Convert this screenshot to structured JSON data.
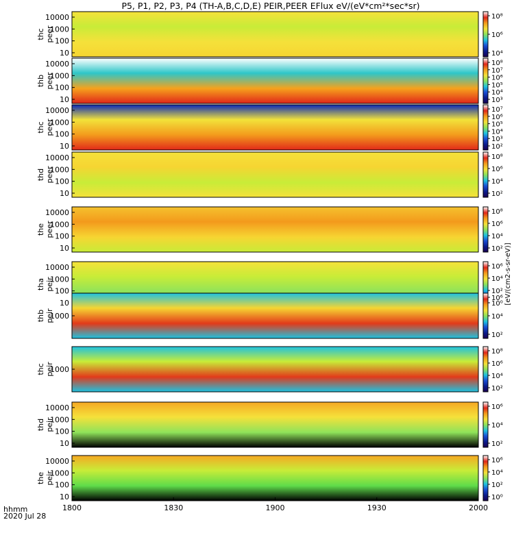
{
  "title": "P5, P1, P2, P3, P4 (TH-A,B,C,D,E) PEIR,PEER EFlux eV/(eV*cm²*sec*sr)",
  "chart_data": {
    "type": "heatmap",
    "x_axis": {
      "ticks": [
        "1800",
        "1830",
        "1900",
        "1930",
        "2000"
      ],
      "corner_label_1": "hhmm",
      "corner_label_2": "2020 Jul 28",
      "range": [
        "18:00",
        "20:00"
      ]
    },
    "colorbar_label": "[eV/(cm2-s-sr-eV)]",
    "panels": [
      {
        "label1": "thc",
        "label2": "peer",
        "yticks": [
          "10000",
          "1000",
          "100",
          "10"
        ],
        "cbticks": [
          "10⁸",
          "10⁶",
          "10⁴"
        ],
        "style": "e_thc"
      },
      {
        "label1": "thb",
        "label2": "peer",
        "yticks": [
          "10000",
          "1000",
          "100",
          "10"
        ],
        "cbticks": [
          "10⁸",
          "10⁷",
          "10⁶",
          "10⁵",
          "10⁴",
          "10³"
        ],
        "style": "e_thb"
      },
      {
        "label1": "thc",
        "label2": "peer",
        "yticks": [
          "10000",
          "1000",
          "100",
          "10"
        ],
        "cbticks": [
          "10⁷",
          "10⁶",
          "10⁵",
          "10⁴",
          "10³",
          "10²"
        ],
        "style": "e_thc2"
      },
      {
        "label1": "thd",
        "label2": "peer",
        "yticks": [
          "10000",
          "1000",
          "100",
          "10"
        ],
        "cbticks": [
          "10⁸",
          "10⁶",
          "10⁴",
          "10²"
        ],
        "style": "e_thd"
      },
      {
        "label1": "the",
        "label2": "peer",
        "yticks": [
          "10000",
          "1000",
          "100",
          "10"
        ],
        "cbticks": [
          "10⁸",
          "10⁶",
          "10⁴",
          "10²"
        ],
        "style": "e_the"
      },
      {
        "label1": "tha",
        "label2": "peir",
        "yticks": [
          "10000",
          "1000",
          "100",
          "10"
        ],
        "cbticks": [
          "10⁶",
          "10⁴",
          "10²",
          "10⁰"
        ],
        "style": "i_tha"
      },
      {
        "label1": "thb",
        "label2": "peir",
        "yticks": [
          "1000"
        ],
        "cbticks": [
          "10⁶",
          "10⁴",
          "10²"
        ],
        "style": "i_thb"
      },
      {
        "label1": "thc",
        "label2": "peir",
        "yticks": [
          "1000"
        ],
        "cbticks": [
          "10⁸",
          "10⁶",
          "10⁴",
          "10²"
        ],
        "style": "i_thc"
      },
      {
        "label1": "thd",
        "label2": "peir",
        "yticks": [
          "10000",
          "1000",
          "100",
          "10"
        ],
        "cbticks": [
          "10⁶",
          "10⁴",
          "10²"
        ],
        "style": "i_thd"
      },
      {
        "label1": "the",
        "label2": "peir",
        "yticks": [
          "10000",
          "1000",
          "100",
          "10"
        ],
        "cbticks": [
          "10⁶",
          "10⁴",
          "10²",
          "10⁰"
        ],
        "style": "i_the"
      }
    ]
  }
}
